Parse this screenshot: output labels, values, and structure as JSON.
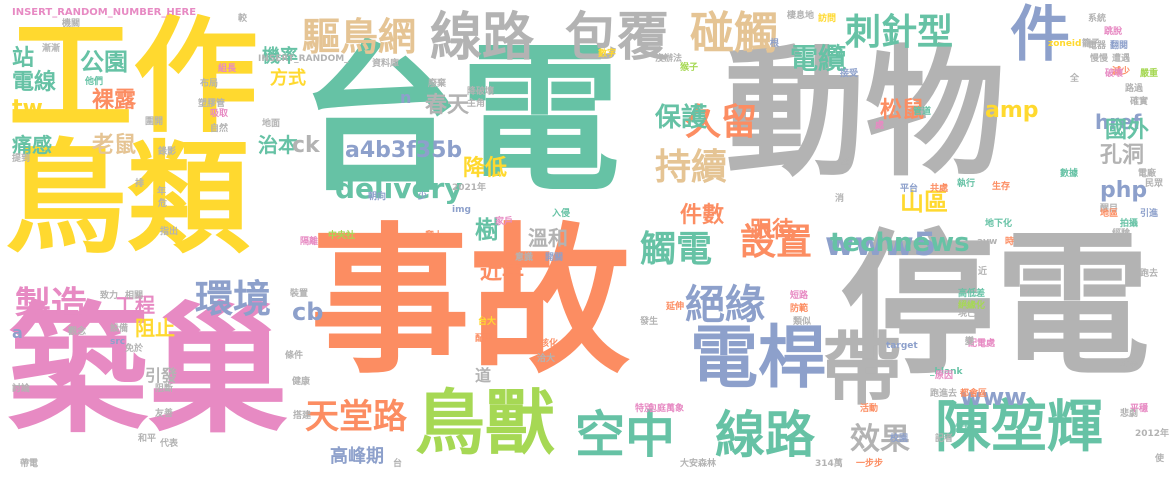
{
  "palette": {
    "green": "#66c2a5",
    "orange": "#fc8d62",
    "blue": "#8da0cb",
    "pink": "#e78ac3",
    "lime": "#a6d854",
    "yellow": "#ffd92f",
    "tan": "#e5c494",
    "gray": "#b3b3b3"
  },
  "words": [
    {
      "text": "台電",
      "color": "green"
    },
    {
      "text": "動物",
      "color": "gray"
    },
    {
      "text": "事故",
      "color": "orange"
    },
    {
      "text": "停電",
      "color": "gray"
    },
    {
      "text": "鳥類",
      "color": "yellow"
    },
    {
      "text": "築巢",
      "color": "pink"
    },
    {
      "text": "工作",
      "color": "yellow"
    },
    {
      "text": "鳥獸",
      "color": "lime"
    },
    {
      "text": "線路",
      "color": "gray"
    },
    {
      "text": "包覆",
      "color": "gray"
    },
    {
      "text": "碰觸",
      "color": "tan"
    },
    {
      "text": "件",
      "color": "blue"
    },
    {
      "text": "電桿",
      "color": "blue"
    },
    {
      "text": "空中",
      "color": "green"
    },
    {
      "text": "線路",
      "color": "green"
    },
    {
      "text": "陳堃輝",
      "color": "green"
    },
    {
      "text": "驅鳥網",
      "color": "tan"
    },
    {
      "text": "刺針型",
      "color": "green"
    },
    {
      "text": "電纜",
      "color": "green"
    },
    {
      "text": "環境",
      "color": "blue"
    },
    {
      "text": "製造",
      "color": "pink"
    },
    {
      "text": "絕緣",
      "color": "blue"
    },
    {
      "text": "設置",
      "color": "orange"
    },
    {
      "text": "觸電",
      "color": "green"
    },
    {
      "text": "持續",
      "color": "tan"
    },
    {
      "text": "久留",
      "color": "orange"
    },
    {
      "text": "保護",
      "color": "green"
    },
    {
      "text": "天堂路",
      "color": "orange"
    },
    {
      "text": "www5",
      "color": "blue"
    },
    {
      "text": "效果",
      "color": "gray"
    },
    {
      "text": "帶",
      "color": "gray"
    },
    {
      "text": "delivery",
      "color": "green"
    },
    {
      "text": "technews",
      "color": "green"
    },
    {
      "text": "a4b3f35b",
      "color": "blue"
    },
    {
      "text": "amp",
      "color": "yellow"
    },
    {
      "text": "www",
      "color": "blue"
    },
    {
      "text": "php",
      "color": "blue"
    },
    {
      "text": "href",
      "color": "blue"
    },
    {
      "text": "公園",
      "color": "green"
    },
    {
      "text": "站",
      "color": "green"
    },
    {
      "text": "電線",
      "color": "green"
    },
    {
      "text": "裸露",
      "color": "orange"
    },
    {
      "text": "tw",
      "color": "yellow"
    },
    {
      "text": "痛感",
      "color": "green"
    },
    {
      "text": "老鼠",
      "color": "tan"
    },
    {
      "text": "機率",
      "color": "green"
    },
    {
      "text": "方式",
      "color": "yellow"
    },
    {
      "text": "松鼠",
      "color": "orange"
    },
    {
      "text": "國外",
      "color": "green"
    },
    {
      "text": "孔洞",
      "color": "gray"
    },
    {
      "text": "山區",
      "color": "yellow"
    },
    {
      "text": "樹",
      "color": "green"
    },
    {
      "text": "件數",
      "color": "orange"
    },
    {
      "text": "降低",
      "color": "yellow"
    },
    {
      "text": "春天",
      "color": "gray"
    },
    {
      "text": "跟待",
      "color": "orange"
    },
    {
      "text": "溫和",
      "color": "gray"
    },
    {
      "text": "近年",
      "color": "orange"
    },
    {
      "text": "工程",
      "color": "pink"
    },
    {
      "text": "阻止",
      "color": "yellow"
    },
    {
      "text": "cb",
      "color": "blue"
    },
    {
      "text": "高峰期",
      "color": "blue"
    },
    {
      "text": "治本",
      "color": "green"
    },
    {
      "text": "ck",
      "color": "gray"
    },
    {
      "text": "n",
      "color": "blue"
    },
    {
      "text": "a",
      "color": "blue"
    },
    {
      "text": "引發",
      "color": "gray"
    },
    {
      "text": "道",
      "color": "gray"
    },
    {
      "text": "INSERT_RANDOM_NUMBER_HERE",
      "color": "pink"
    },
    {
      "text": "INSERT_RANDOM_",
      "color": "gray"
    },
    {
      "text": "資料庫",
      "color": "gray"
    },
    {
      "text": "2021年",
      "color": "gray"
    },
    {
      "text": "_blank",
      "color": "green"
    },
    {
      "text": "target",
      "color": "blue"
    },
    {
      "text": "zoneid",
      "color": "yellow"
    },
    {
      "text": "2012年",
      "color": "gray"
    },
    {
      "text": "大安森林",
      "color": "gray"
    },
    {
      "text": "314萬",
      "color": "gray"
    },
    {
      "text": "一步步",
      "color": "orange"
    },
    {
      "text": "包庭萬象",
      "color": "pink"
    },
    {
      "text": "中央社",
      "color": "lime"
    },
    {
      "text": "爬上",
      "color": "orange"
    },
    {
      "text": "img",
      "color": "blue"
    },
    {
      "text": "avw",
      "color": "gray"
    },
    {
      "text": "src",
      "color": "blue"
    },
    {
      "text": "地下化",
      "color": "green"
    },
    {
      "text": "生存",
      "color": "orange"
    },
    {
      "text": "執行",
      "color": "green"
    },
    {
      "text": "共處",
      "color": "orange"
    },
    {
      "text": "原因",
      "color": "pink"
    },
    {
      "text": "跑進去",
      "color": "gray"
    },
    {
      "text": "都會區",
      "color": "orange"
    },
    {
      "text": "高低差",
      "color": "green"
    },
    {
      "text": "絕緣化",
      "color": "lime"
    },
    {
      "text": "配電處",
      "color": "pink"
    },
    {
      "text": "活動",
      "color": "orange"
    },
    {
      "text": "特別",
      "color": "pink"
    },
    {
      "text": "台大",
      "color": "yellow"
    },
    {
      "text": "配電",
      "color": "orange"
    },
    {
      "text": "洽大",
      "color": "gray"
    },
    {
      "text": "核化",
      "color": "orange"
    },
    {
      "text": "處",
      "color": "pink"
    },
    {
      "text": "管道",
      "color": "green"
    },
    {
      "text": "翻閱",
      "color": "blue"
    },
    {
      "text": "遭遇",
      "color": "gray"
    },
    {
      "text": "減少",
      "color": "orange"
    },
    {
      "text": "系統",
      "color": "gray"
    },
    {
      "text": "跳脫",
      "color": "pink"
    },
    {
      "text": "籠子",
      "color": "gray"
    },
    {
      "text": "訪問",
      "color": "yellow"
    },
    {
      "text": "棲息地",
      "color": "gray"
    },
    {
      "text": "根",
      "color": "blue"
    },
    {
      "text": "沒辦法",
      "color": "gray"
    },
    {
      "text": "猴子",
      "color": "lime"
    },
    {
      "text": "數字",
      "color": "yellow"
    },
    {
      "text": "廢棄",
      "color": "gray"
    },
    {
      "text": "降破壞",
      "color": "gray"
    },
    {
      "text": "主角",
      "color": "gray"
    },
    {
      "text": "接受",
      "color": "blue"
    },
    {
      "text": "確實",
      "color": "gray"
    },
    {
      "text": "路過",
      "color": "gray"
    },
    {
      "text": "慢慢",
      "color": "gray"
    },
    {
      "text": "破壞",
      "color": "pink"
    },
    {
      "text": "嚴重",
      "color": "lime"
    },
    {
      "text": "電器",
      "color": "gray"
    },
    {
      "text": "跑去",
      "color": "gray"
    },
    {
      "text": "引進",
      "color": "blue"
    },
    {
      "text": "拍攝",
      "color": "green"
    },
    {
      "text": "經驗",
      "color": "gray"
    },
    {
      "text": "醒目",
      "color": "gray"
    },
    {
      "text": "數據",
      "color": "green"
    },
    {
      "text": "地區",
      "color": "orange"
    },
    {
      "text": "平台",
      "color": "blue"
    },
    {
      "text": "電廠",
      "color": "gray"
    },
    {
      "text": "嚴禁",
      "color": "gray"
    },
    {
      "text": "悲劇",
      "color": "gray"
    },
    {
      "text": "平穩",
      "color": "pink"
    },
    {
      "text": "變",
      "color": "gray"
    },
    {
      "text": "時",
      "color": "orange"
    },
    {
      "text": "開關",
      "color": "blue"
    },
    {
      "text": "意識",
      "color": "gray"
    },
    {
      "text": "發生",
      "color": "gray"
    },
    {
      "text": "延伸",
      "color": "orange"
    },
    {
      "text": "短路",
      "color": "pink"
    },
    {
      "text": "防範",
      "color": "orange"
    },
    {
      "text": "類似",
      "color": "gray"
    },
    {
      "text": "現已",
      "color": "gray"
    },
    {
      "text": "家戶",
      "color": "pink"
    },
    {
      "text": "民眾",
      "color": "gray"
    },
    {
      "text": "入侵",
      "color": "green"
    },
    {
      "text": "校園",
      "color": "blue"
    },
    {
      "text": "記者",
      "color": "gray"
    },
    {
      "text": "當地",
      "color": "green"
    },
    {
      "text": "朝向",
      "color": "blue"
    },
    {
      "text": "少",
      "color": "blue"
    },
    {
      "text": "隔離",
      "color": "pink"
    },
    {
      "text": "他們",
      "color": "green"
    },
    {
      "text": "組長",
      "color": "pink"
    },
    {
      "text": "布局",
      "color": "gray"
    },
    {
      "text": "塑膠管",
      "color": "gray"
    },
    {
      "text": "吸取",
      "color": "pink"
    },
    {
      "text": "自然",
      "color": "gray"
    },
    {
      "text": "地面",
      "color": "gray"
    },
    {
      "text": "圍開",
      "color": "gray"
    },
    {
      "text": "提到",
      "color": "gray"
    },
    {
      "text": "排",
      "color": "gray"
    },
    {
      "text": "指出",
      "color": "gray"
    },
    {
      "text": "致力",
      "color": "gray"
    },
    {
      "text": "相關",
      "color": "gray"
    },
    {
      "text": "觀念",
      "color": "gray"
    },
    {
      "text": "設備",
      "color": "gray"
    },
    {
      "text": "免於",
      "color": "gray"
    },
    {
      "text": "討論",
      "color": "gray"
    },
    {
      "text": "友善",
      "color": "gray"
    },
    {
      "text": "和平",
      "color": "gray"
    },
    {
      "text": "代表",
      "color": "gray"
    },
    {
      "text": "帶電",
      "color": "gray"
    },
    {
      "text": "機關",
      "color": "gray"
    },
    {
      "text": "漸漸",
      "color": "gray"
    },
    {
      "text": "錄影",
      "color": "gray"
    },
    {
      "text": "裝置",
      "color": "gray"
    },
    {
      "text": "條件",
      "color": "gray"
    },
    {
      "text": "健康",
      "color": "gray"
    },
    {
      "text": "阻斷",
      "color": "gray"
    },
    {
      "text": "搭建",
      "color": "gray"
    },
    {
      "text": "全",
      "color": "gray"
    },
    {
      "text": "使",
      "color": "gray"
    },
    {
      "text": "近",
      "color": "gray"
    },
    {
      "text": "較",
      "color": "gray"
    },
    {
      "text": "台",
      "color": "gray"
    },
    {
      "text": "年",
      "color": "gray"
    },
    {
      "text": "整",
      "color": "gray"
    },
    {
      "text": "消",
      "color": "gray"
    },
    {
      "text": "危",
      "color": "gray"
    }
  ]
}
